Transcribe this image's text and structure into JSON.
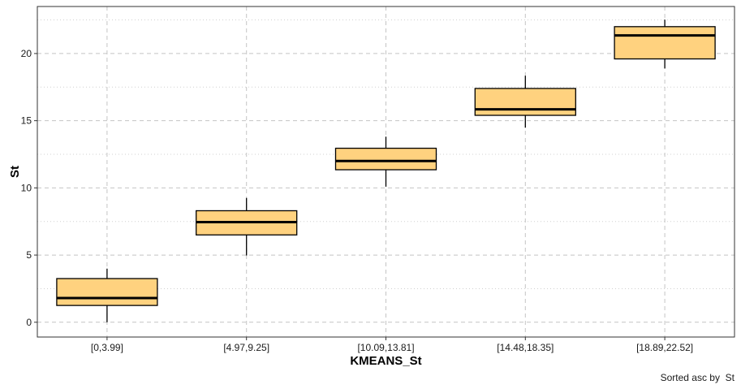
{
  "chart_data": {
    "type": "box",
    "xlabel": "KMEANS_St",
    "ylabel": "St",
    "caption": "Sorted asc by  St",
    "ylim": [
      -1.1,
      23.5
    ],
    "yticks": [
      0,
      5,
      10,
      15,
      20
    ],
    "ytick_labels": [
      "0",
      "5",
      "10",
      "15",
      "20"
    ],
    "grid": true,
    "box_color": "#ffd27f",
    "categories": [
      "[0,3.99]",
      "[4.97,9.25]",
      "[10.09,13.81]",
      "[14.48,18.35]",
      "[18.89,22.52]"
    ],
    "boxes": [
      {
        "min": 0.0,
        "q1": 1.25,
        "median": 1.8,
        "q3": 3.25,
        "max": 3.99
      },
      {
        "min": 4.97,
        "q1": 6.5,
        "median": 7.45,
        "q3": 8.3,
        "max": 9.25
      },
      {
        "min": 10.09,
        "q1": 11.35,
        "median": 12.0,
        "q3": 12.95,
        "max": 13.81
      },
      {
        "min": 14.48,
        "q1": 15.4,
        "median": 15.85,
        "q3": 17.4,
        "max": 18.35
      },
      {
        "min": 18.89,
        "q1": 19.6,
        "median": 21.35,
        "q3": 22.0,
        "max": 22.52
      }
    ]
  }
}
